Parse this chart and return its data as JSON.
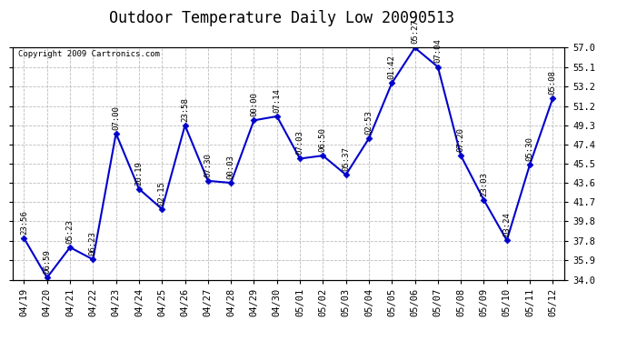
{
  "title": "Outdoor Temperature Daily Low 20090513",
  "copyright": "Copyright 2009 Cartronics.com",
  "line_color": "#0000cc",
  "marker_color": "#0000cc",
  "background_color": "#ffffff",
  "grid_color": "#bbbbbb",
  "ylim": [
    34.0,
    57.0
  ],
  "yticks": [
    34.0,
    35.9,
    37.8,
    39.8,
    41.7,
    43.6,
    45.5,
    47.4,
    49.3,
    51.2,
    53.2,
    55.1,
    57.0
  ],
  "dates": [
    "04/19",
    "04/20",
    "04/21",
    "04/22",
    "04/23",
    "04/24",
    "04/25",
    "04/26",
    "04/27",
    "04/28",
    "04/29",
    "04/30",
    "05/01",
    "05/02",
    "05/03",
    "05/04",
    "05/05",
    "05/06",
    "05/07",
    "05/08",
    "05/09",
    "05/10",
    "05/11",
    "05/12"
  ],
  "values": [
    38.1,
    34.2,
    37.2,
    36.0,
    48.5,
    43.0,
    41.0,
    49.3,
    43.8,
    43.6,
    49.8,
    50.2,
    46.0,
    46.3,
    44.4,
    48.0,
    53.5,
    57.0,
    55.1,
    46.3,
    41.9,
    37.9,
    45.4,
    52.0
  ],
  "labels": [
    "23:56",
    "06:59",
    "05:23",
    "06:23",
    "07:00",
    "20:19",
    "02:15",
    "23:58",
    "07:30",
    "00:03",
    "00:00",
    "07:14",
    "07:03",
    "06:50",
    "05:37",
    "02:53",
    "01:42",
    "05:27",
    "07:04",
    "07:20",
    "23:03",
    "03:24",
    "05:30",
    "05:08"
  ],
  "title_fontsize": 12,
  "tick_fontsize": 7.5,
  "label_fontsize": 6.5
}
